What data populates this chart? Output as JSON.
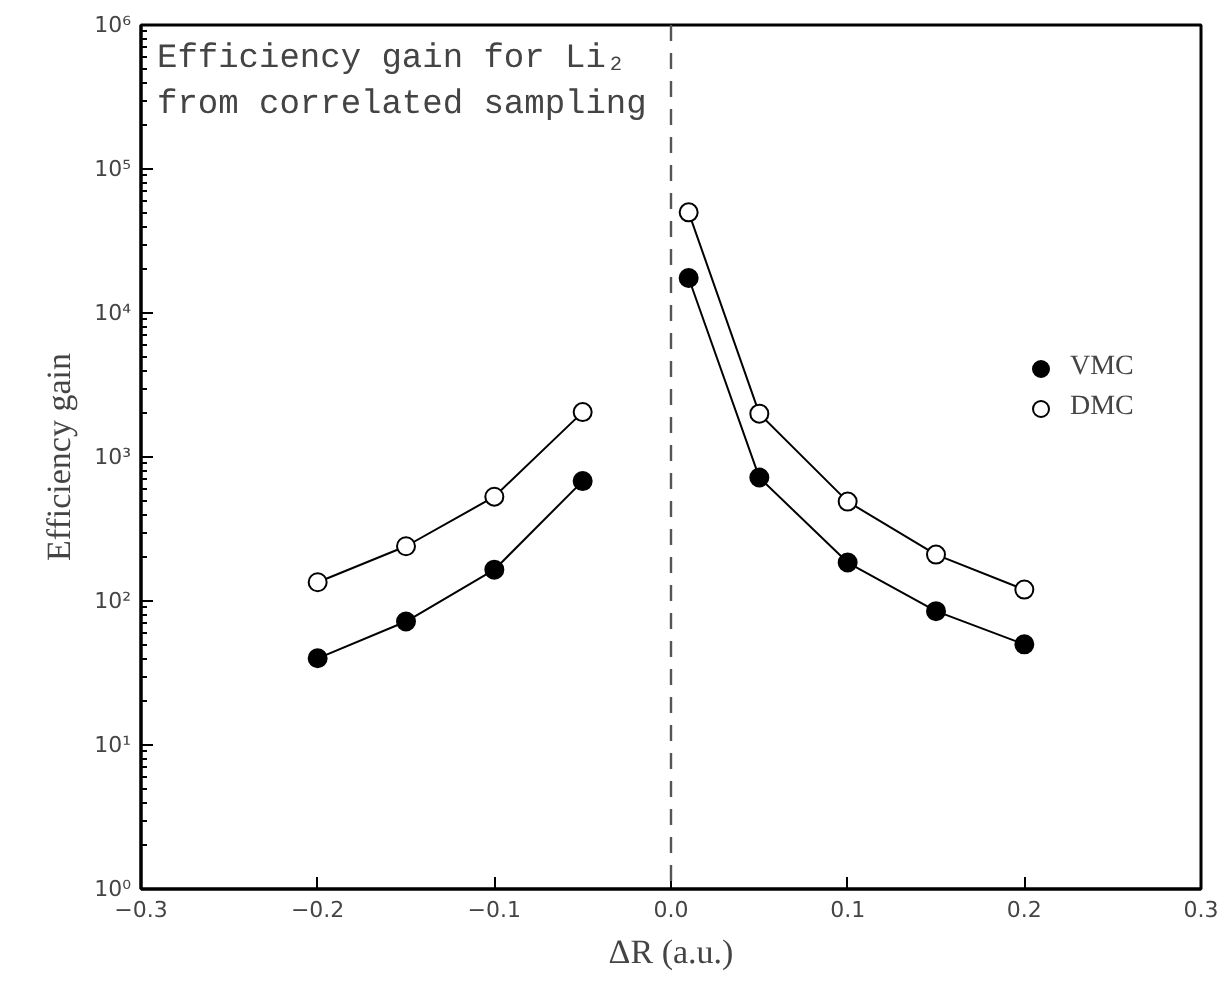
{
  "chart_data": {
    "type": "line",
    "xlabel": "ΔR (a.u.)",
    "ylabel": "Efficiency gain",
    "annotations": [
      "Efficiency gain for Li₂\nfrom correlated sampling"
    ],
    "x": [
      -0.2,
      -0.15,
      -0.1,
      -0.05,
      0,
      0.01,
      0.05,
      0.1,
      0.15,
      0.2
    ],
    "series": [
      {
        "name": "VMC",
        "color": "#000000",
        "values": [
          40,
          72,
          165,
          680,
          null,
          17500,
          720,
          185,
          85,
          50
        ]
      },
      {
        "name": "DMC",
        "color": "#000000",
        "values": [
          135,
          240,
          530,
          2050,
          null,
          50000,
          2000,
          490,
          210,
          120
        ]
      }
    ],
    "log": "y",
    "xlim": [
      -0.3,
      0.3
    ],
    "xticks": [
      {
        "value": -0.3,
        "label": "−0.3"
      },
      {
        "value": -0.2,
        "label": "−0.2"
      },
      {
        "value": -0.1,
        "label": "−0.1"
      },
      {
        "value": 0,
        "label": "0.0"
      },
      0.1,
      0.2,
      0.3
    ],
    "ylim": [
      1,
      1000000
    ],
    "yticks": [
      {
        "value": 1,
        "label": "10⁰"
      },
      {
        "value": 10,
        "label": "10¹"
      },
      {
        "value": 100,
        "label": "10²"
      },
      {
        "value": 1000,
        "label": "10³"
      },
      {
        "value": 10000,
        "label": "10⁴"
      },
      {
        "value": 100000,
        "label": "10⁵"
      },
      {
        "value": 1000000,
        "label": "10⁶"
      }
    ],
    "ref_lines": [
      {
        "axis": "x",
        "value": 0,
        "label": null,
        "line_style": "dashed",
        "color": "#555555"
      }
    ],
    "grid": false,
    "legend": "right",
    "marker": "circle",
    "line_style": "solid"
  }
}
